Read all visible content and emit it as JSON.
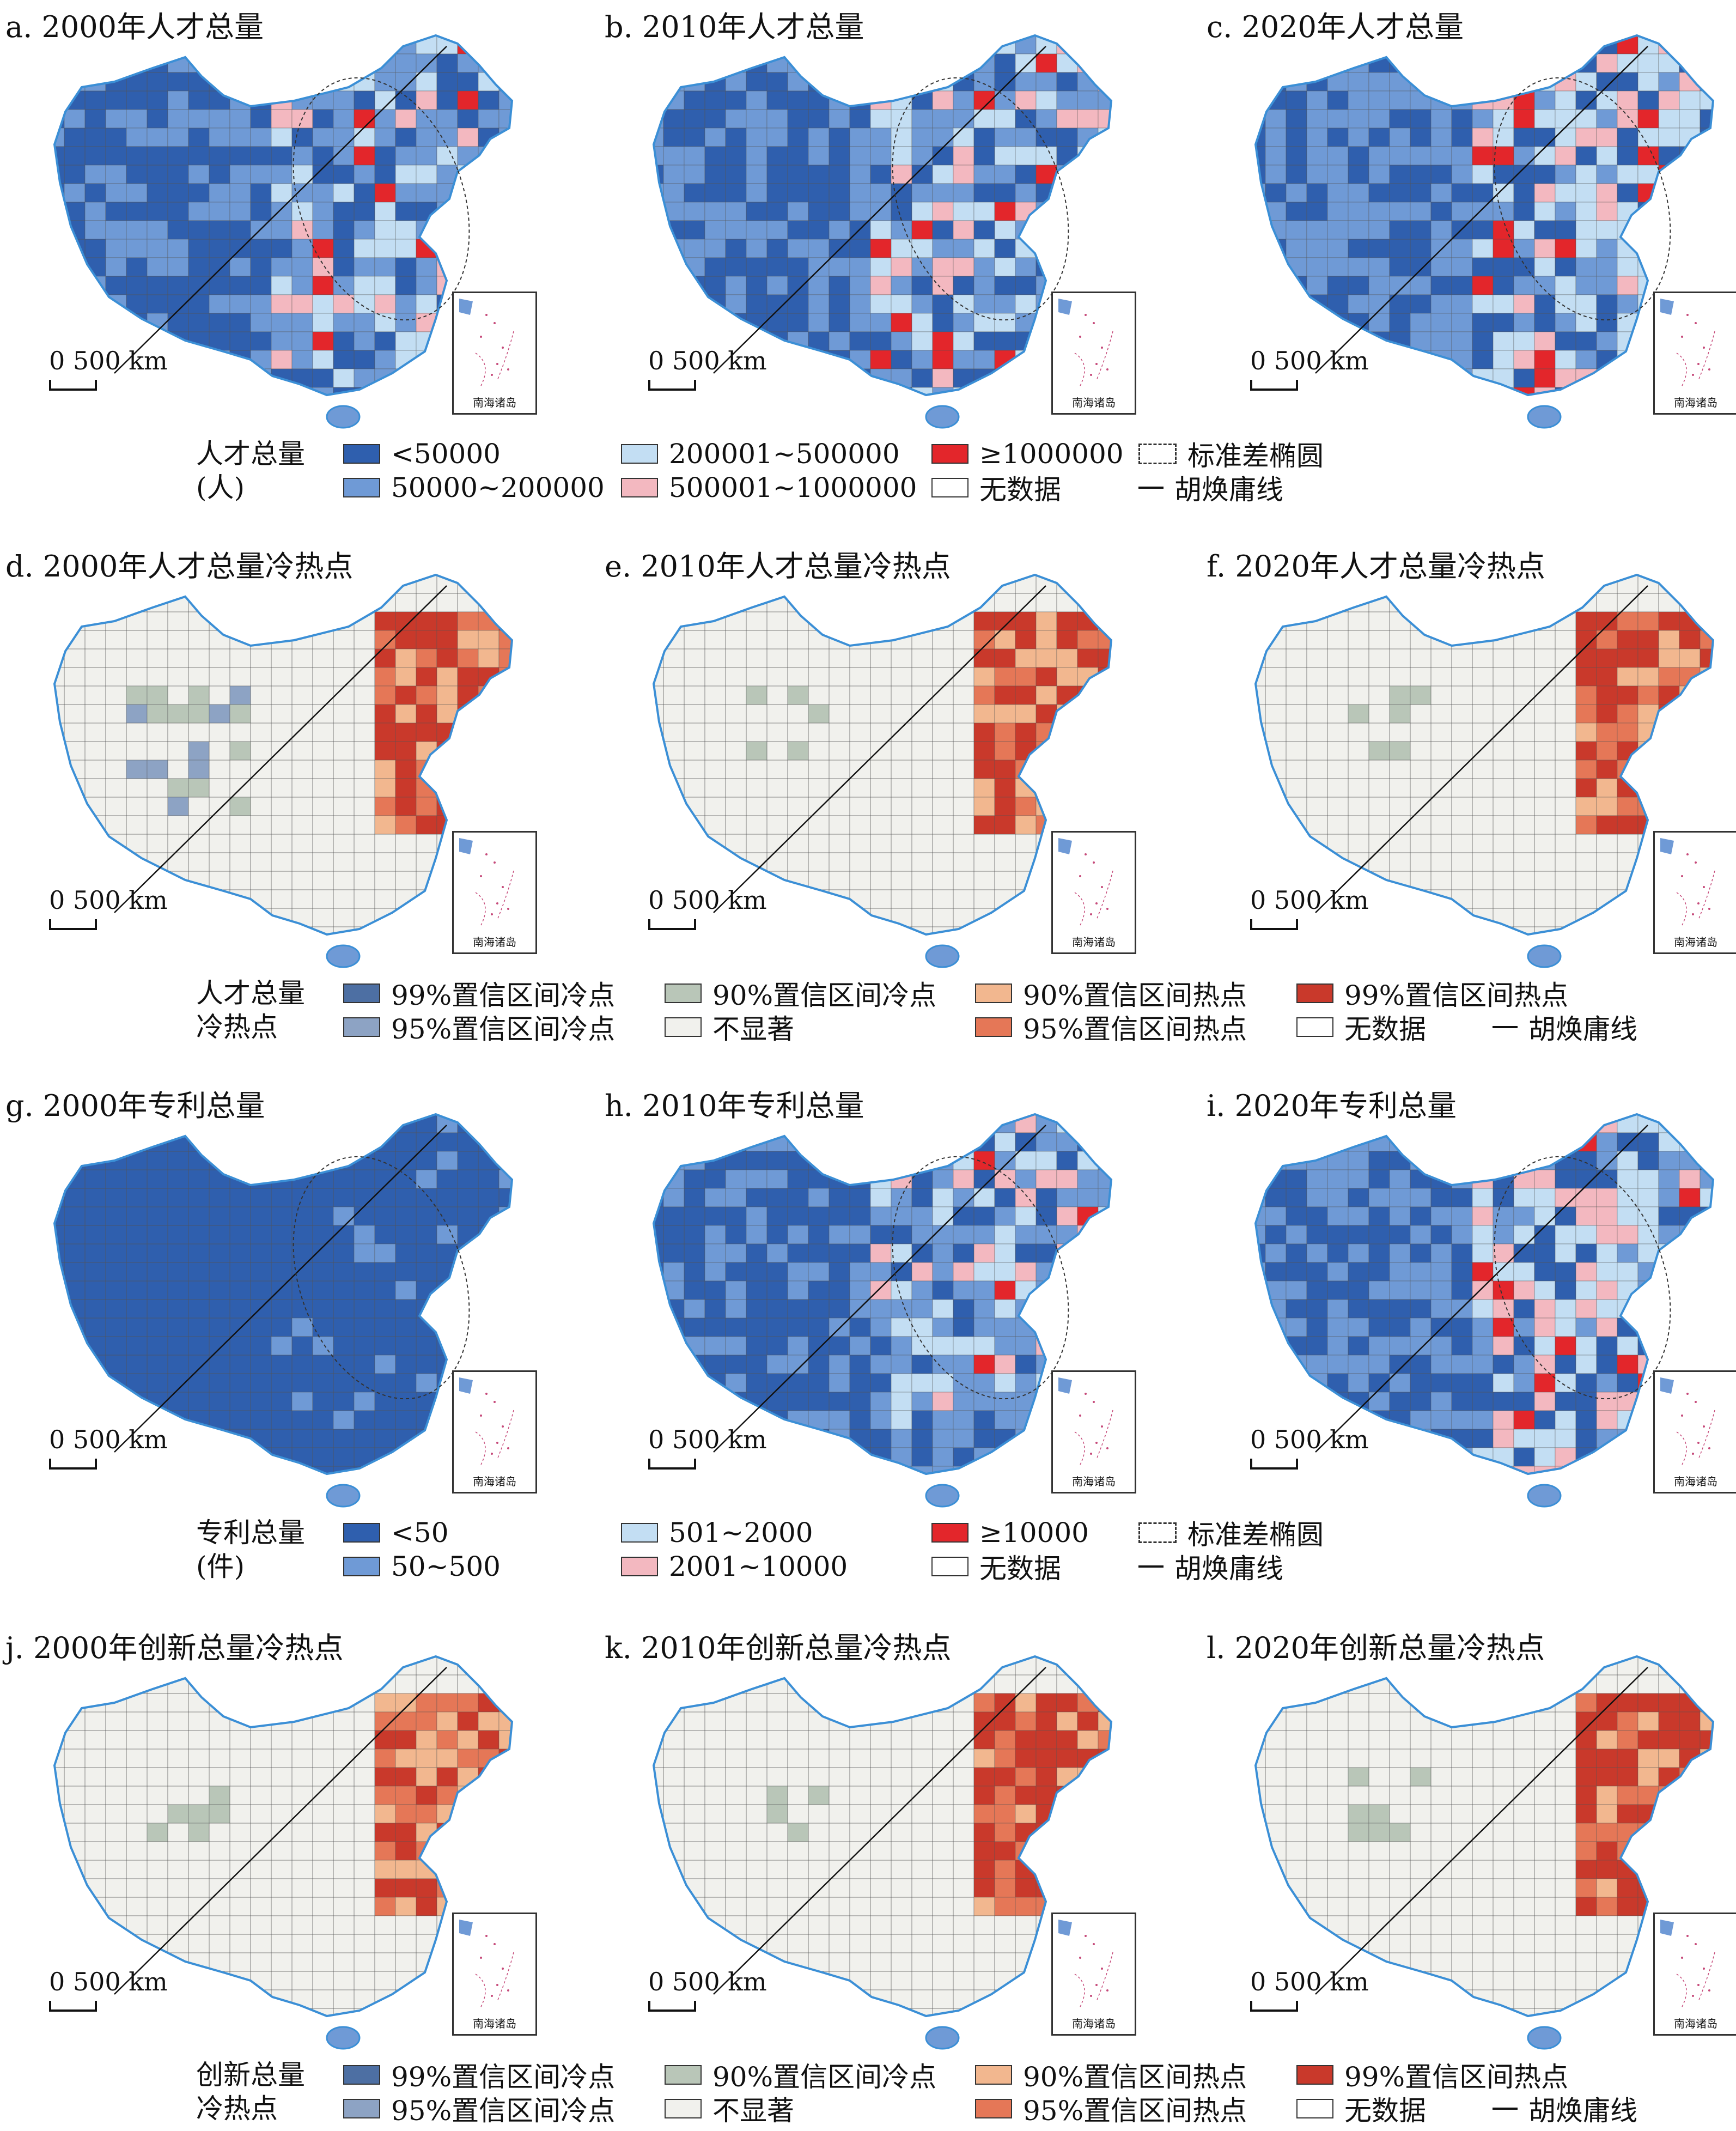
{
  "colors": {
    "count1": "#2f5fae",
    "count2": "#6f9ad6",
    "count3": "#c3def3",
    "count4": "#f3b8c0",
    "count5": "#e3262b",
    "cold99": "#4d6fa3",
    "cold95": "#8da3c4",
    "cold90": "#b9c6b8",
    "ns": "#f1f1ed",
    "hot90": "#f2b78f",
    "hot95": "#e57757",
    "hot99": "#c9392b",
    "border": "#555555",
    "coast": "#3b8fd6"
  },
  "panels": [
    {
      "title": "a. 2000年人才总量",
      "kind": "count",
      "level": 0
    },
    {
      "title": "b. 2010年人才总量",
      "kind": "count",
      "level": 1
    },
    {
      "title": "c. 2020年人才总量",
      "kind": "count",
      "level": 2
    },
    {
      "title": "d. 2000年人才总量冷热点",
      "kind": "hot",
      "level": 0
    },
    {
      "title": "e. 2010年人才总量冷热点",
      "kind": "hot",
      "level": 1
    },
    {
      "title": "f. 2020年人才总量冷热点",
      "kind": "hot",
      "level": 2
    },
    {
      "title": "g. 2000年专利总量",
      "kind": "count",
      "level": -1
    },
    {
      "title": "h. 2010年专利总量",
      "kind": "count",
      "level": 0
    },
    {
      "title": "i. 2020年专利总量",
      "kind": "count",
      "level": 2
    },
    {
      "title": "j. 2000年创新总量冷热点",
      "kind": "hot",
      "level": 3
    },
    {
      "title": "k. 2010年创新总量冷热点",
      "kind": "hot",
      "level": 1
    },
    {
      "title": "l. 2020年创新总量冷热点",
      "kind": "hot",
      "level": 2
    }
  ],
  "scale_label": "0  500 km",
  "inset_label": "南海诸岛",
  "legend_talent": {
    "title_line1": "人才总量",
    "title_line2": "(人)",
    "items": [
      "<50000",
      "50000~200000",
      "200001~500000",
      "500001~1000000",
      "≥1000000",
      "无数据",
      "标准差椭圆",
      "胡焕庸线"
    ]
  },
  "legend_hot1": {
    "title_line1": "人才总量",
    "title_line2": "冷热点",
    "items": [
      "99%置信区间冷点",
      "95%置信区间冷点",
      "90%置信区间冷点",
      "不显著",
      "90%置信区间热点",
      "95%置信区间热点",
      "99%置信区间热点",
      "无数据",
      "胡焕庸线"
    ]
  },
  "legend_patent": {
    "title_line1": "专利总量",
    "title_line2": "(件)",
    "items": [
      "<50",
      "50~500",
      "501~2000",
      "2001~10000",
      "≥10000",
      "无数据",
      "标准差椭圆",
      "胡焕庸线"
    ]
  },
  "legend_hot2": {
    "title_line1": "创新总量",
    "title_line2": "冷热点",
    "items": [
      "99%置信区间冷点",
      "95%置信区间冷点",
      "90%置信区间冷点",
      "不显著",
      "90%置信区间热点",
      "95%置信区间热点",
      "99%置信区间热点",
      "无数据",
      "胡焕庸线"
    ]
  }
}
